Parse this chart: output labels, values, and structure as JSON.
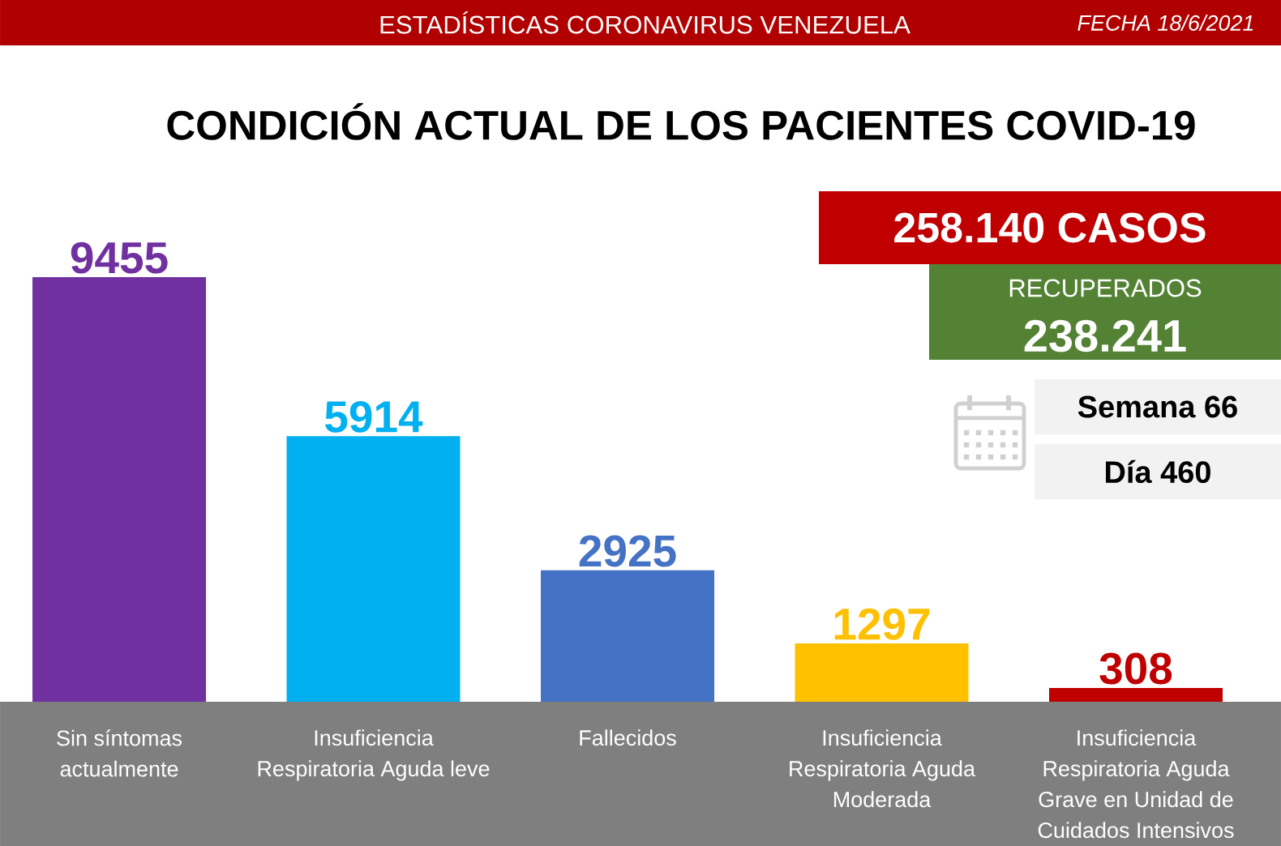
{
  "chart_data": {
    "type": "bar",
    "title": "CONDICIÓN ACTUAL DE LOS PACIENTES COVID-19",
    "categories": [
      "Sin síntomas actualmente",
      "Insuficiencia Respiratoria Aguda leve",
      "Fallecidos",
      "Insuficiencia Respiratoria Aguda Moderada",
      "Insuficiencia Respiratoria Aguda Grave en Unidad de Cuidados Intensivos"
    ],
    "values": [
      9455,
      5914,
      2925,
      1297,
      308
    ],
    "colors": [
      "#7030a0",
      "#00b0f0",
      "#4472c4",
      "#ffc000",
      "#c00000"
    ],
    "data_labels": true,
    "annotations": [
      "ESTADÍSTICAS CORONAVIRUS VENEZUELA",
      "FECHA 18/6/2021",
      "258.140 CASOS",
      "RECUPERADOS",
      "238.241",
      "Semana 66",
      "Día 460"
    ]
  }
}
